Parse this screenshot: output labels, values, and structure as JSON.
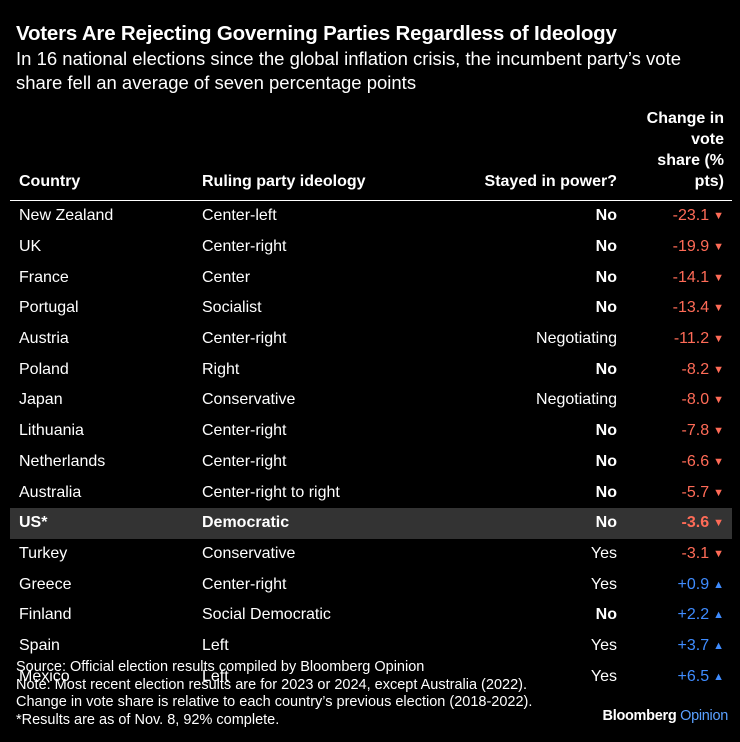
{
  "title": "Voters Are Rejecting Governing Parties Regardless of Ideology",
  "subtitle": "In 16 national elections since the global inflation crisis, the incumbent party’s vote share fell an average of seven percentage points",
  "colors": {
    "negative": "#ff6b57",
    "positive": "#3f8cff",
    "highlight_row": "#333333",
    "background": "#000000"
  },
  "chart_data": {
    "type": "table",
    "columns": [
      "Country",
      "Ruling party ideology",
      "Stayed in power?",
      "Change in vote share (% pts)"
    ],
    "rows": [
      {
        "country": "New Zealand",
        "ideology": "Center-left",
        "stayed": "No",
        "change": -23.1,
        "change_label": "-23.1",
        "arrow": "▼"
      },
      {
        "country": "UK",
        "ideology": "Center-right",
        "stayed": "No",
        "change": -19.9,
        "change_label": "-19.9",
        "arrow": "▼"
      },
      {
        "country": "France",
        "ideology": "Center",
        "stayed": "No",
        "change": -14.1,
        "change_label": "-14.1",
        "arrow": "▼"
      },
      {
        "country": "Portugal",
        "ideology": "Socialist",
        "stayed": "No",
        "change": -13.4,
        "change_label": "-13.4",
        "arrow": "▼"
      },
      {
        "country": "Austria",
        "ideology": "Center-right",
        "stayed": "Negotiating",
        "change": -11.2,
        "change_label": "-11.2",
        "arrow": "▼"
      },
      {
        "country": "Poland",
        "ideology": "Right",
        "stayed": "No",
        "change": -8.2,
        "change_label": "-8.2",
        "arrow": "▼"
      },
      {
        "country": "Japan",
        "ideology": "Conservative",
        "stayed": "Negotiating",
        "change": -8.0,
        "change_label": "-8.0",
        "arrow": "▼"
      },
      {
        "country": "Lithuania",
        "ideology": "Center-right",
        "stayed": "No",
        "change": -7.8,
        "change_label": "-7.8",
        "arrow": "▼"
      },
      {
        "country": "Netherlands",
        "ideology": "Center-right",
        "stayed": "No",
        "change": -6.6,
        "change_label": "-6.6",
        "arrow": "▼"
      },
      {
        "country": "Australia",
        "ideology": "Center-right to right",
        "stayed": "No",
        "change": -5.7,
        "change_label": "-5.7",
        "arrow": "▼"
      },
      {
        "country": "US*",
        "ideology": "Democratic",
        "stayed": "No",
        "change": -3.6,
        "change_label": "-3.6",
        "arrow": "▼",
        "highlight": true
      },
      {
        "country": "Turkey",
        "ideology": "Conservative",
        "stayed": "Yes",
        "change": -3.1,
        "change_label": "-3.1",
        "arrow": "▼"
      },
      {
        "country": "Greece",
        "ideology": "Center-right",
        "stayed": "Yes",
        "change": 0.9,
        "change_label": "+0.9",
        "arrow": "▲"
      },
      {
        "country": "Finland",
        "ideology": "Social Democratic",
        "stayed": "No",
        "change": 2.2,
        "change_label": "+2.2",
        "arrow": "▲"
      },
      {
        "country": "Spain",
        "ideology": "Left",
        "stayed": "Yes",
        "change": 3.7,
        "change_label": "+3.7",
        "arrow": "▲"
      },
      {
        "country": "Mexico",
        "ideology": "Left",
        "stayed": "Yes",
        "change": 6.5,
        "change_label": "+6.5",
        "arrow": "▲"
      }
    ]
  },
  "header": {
    "country": "Country",
    "ideology": "Ruling party ideology",
    "stayed": "Stayed in power?",
    "change_line1": "Change in vote",
    "change_line2": "share (% pts)"
  },
  "notes": [
    "Source: Official election results compiled by Bloomberg Opinion",
    "Note: Most recent election results are for 2023 or 2024, except Australia (2022).",
    "Change in vote share is relative to each country’s previous election (2018-2022).",
    "*Results are as of Nov. 8, 92% complete."
  ],
  "brand": {
    "name": "Bloomberg",
    "suffix": " Opinion"
  }
}
